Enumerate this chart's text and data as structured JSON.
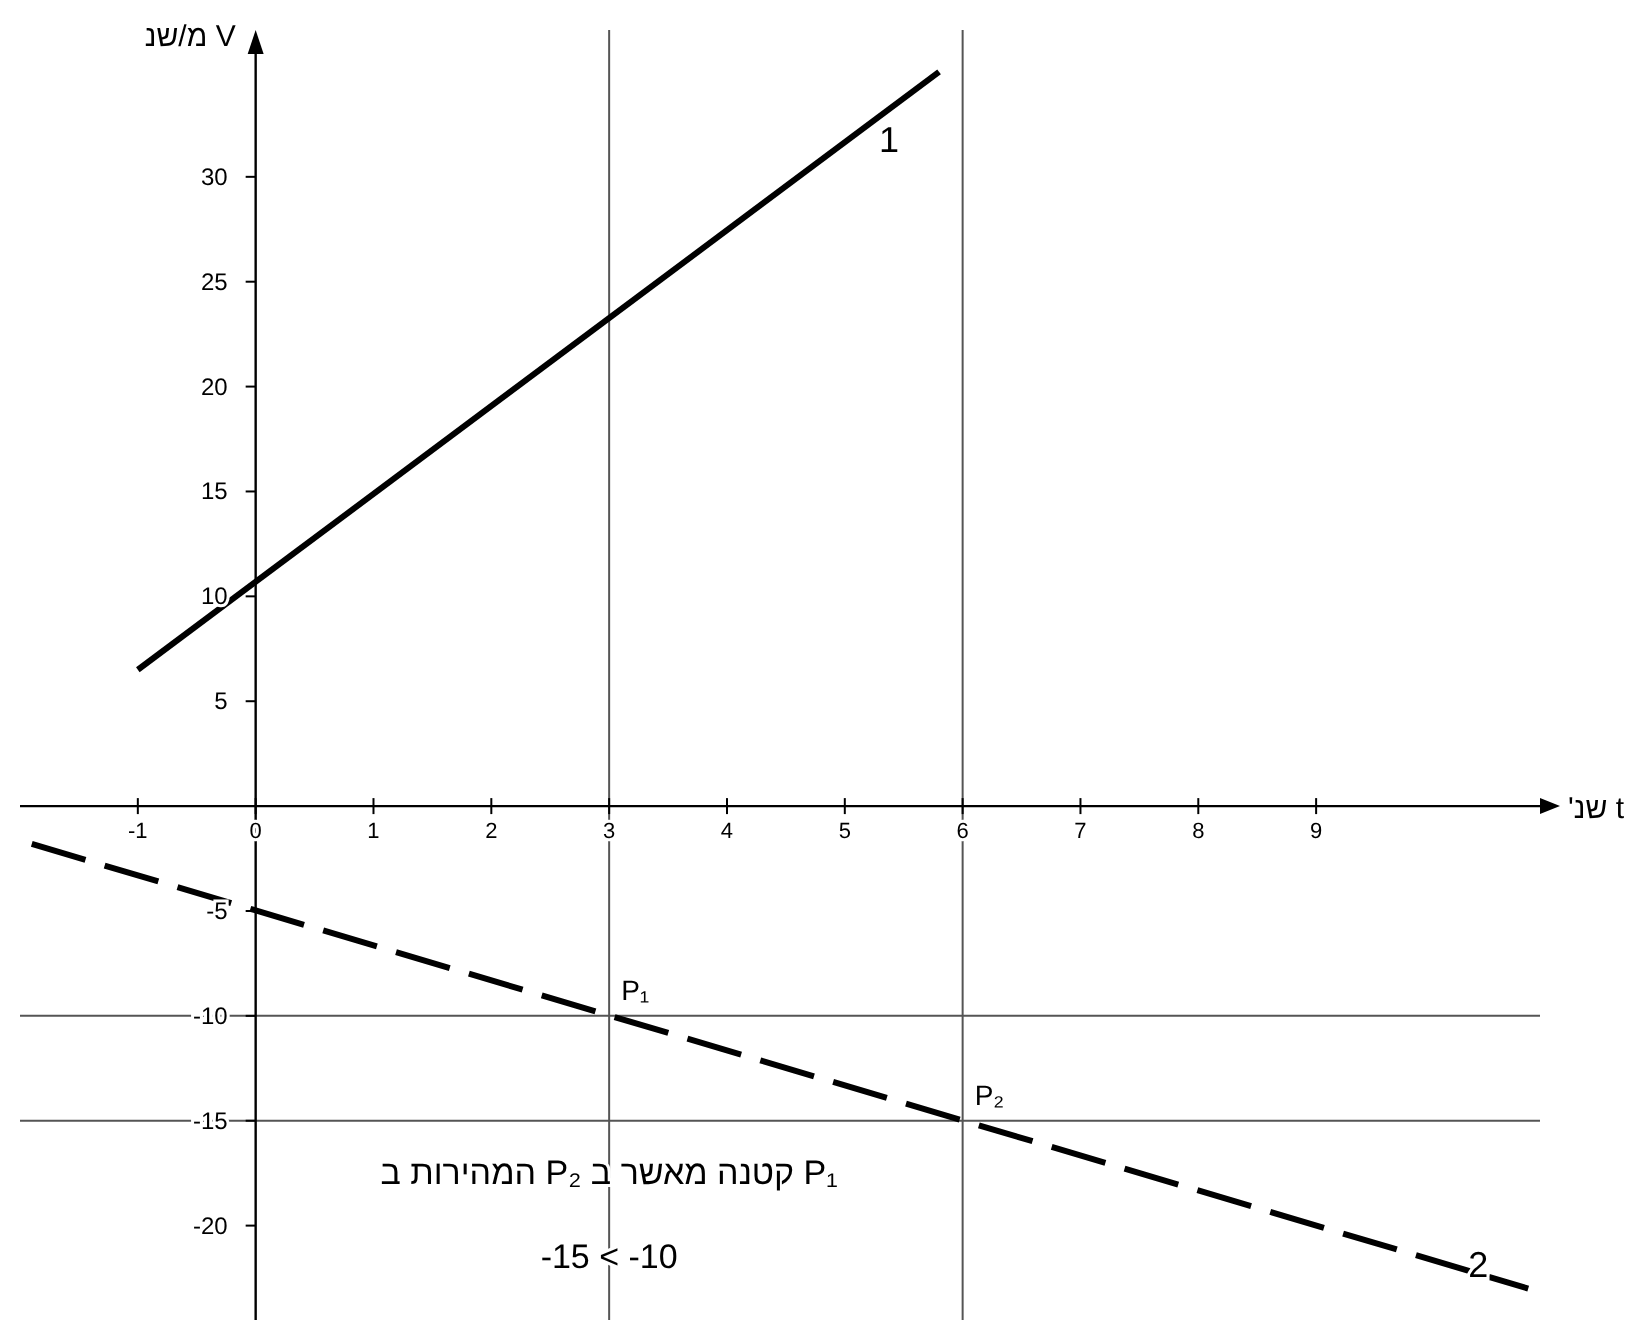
{
  "chart_data": {
    "type": "line",
    "xlabel": "t שנ'",
    "ylabel": "V מ/שנ",
    "xlim": [
      -2,
      10.9
    ],
    "ylim": [
      -24.5,
      37
    ],
    "xticks": [
      -1,
      0,
      1,
      2,
      3,
      4,
      5,
      6,
      7,
      8,
      9
    ],
    "yticks": [
      -20,
      -15,
      -10,
      -5,
      5,
      10,
      15,
      20,
      25,
      30
    ],
    "grid": false,
    "legend": false,
    "marker": "none",
    "series": [
      {
        "name": "1",
        "color": "#000000",
        "x": [
          -1,
          5.8
        ],
        "values": [
          6.5,
          35
        ],
        "line_style": "solid"
      },
      {
        "name": "2",
        "color": "#000000",
        "x": [
          -1.9,
          10.8
        ],
        "values": [
          -1.8,
          -23
        ],
        "line_style": "dashed"
      }
    ],
    "ref_lines": [
      {
        "axis": "y",
        "value": -10,
        "color": "#555555"
      },
      {
        "axis": "y",
        "value": -15,
        "color": "#555555"
      },
      {
        "axis": "x",
        "value": 3,
        "color": "#555555"
      },
      {
        "axis": "x",
        "value": 6,
        "color": "#555555"
      }
    ],
    "annotations": [
      {
        "text": "P₁",
        "x": 3,
        "y": -10
      },
      {
        "text": "P₂",
        "x": 6,
        "y": -15
      },
      "המהירות ב P₂ קטנה מאשר ב P₁",
      "-15 < -10"
    ]
  }
}
